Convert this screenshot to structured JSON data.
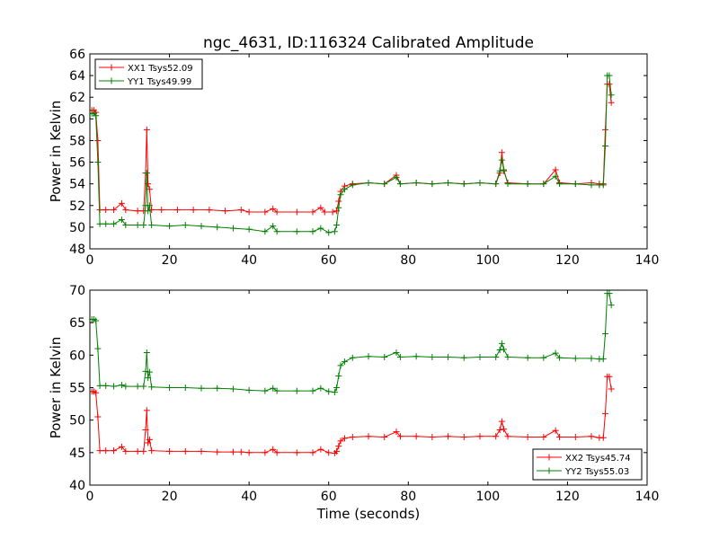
{
  "figure_title": "ngc_4631, ID:116324 Calibrated Amplitude",
  "colors": {
    "red": "#ff0000",
    "green": "#008000",
    "axis": "#000000"
  },
  "chart_data": [
    {
      "type": "line",
      "title": "ngc_4631, ID:116324 Calibrated Amplitude",
      "xlabel": "",
      "ylabel": "Power in Kelvin",
      "xlim": [
        0,
        140
      ],
      "ylim": [
        48,
        66
      ],
      "xticks": [
        0,
        20,
        40,
        60,
        80,
        100,
        120,
        140
      ],
      "yticks": [
        48,
        50,
        52,
        54,
        56,
        58,
        60,
        62,
        64,
        66
      ],
      "grid": false,
      "legend_position": "top-left",
      "series": [
        {
          "name": "XX1 Tsys52.09",
          "color": "#ff0000",
          "marker": "+",
          "points": [
            [
              0.5,
              60.8
            ],
            [
              1,
              60.8
            ],
            [
              1.5,
              60.6
            ],
            [
              2,
              58.0
            ],
            [
              2.5,
              51.6
            ],
            [
              4,
              51.6
            ],
            [
              6,
              51.6
            ],
            [
              8,
              52.2
            ],
            [
              9,
              51.6
            ],
            [
              12,
              51.5
            ],
            [
              13.5,
              51.5
            ],
            [
              14,
              55.0
            ],
            [
              14.3,
              59.0
            ],
            [
              14.6,
              54.0
            ],
            [
              15,
              53.5
            ],
            [
              15.5,
              51.6
            ],
            [
              18,
              51.6
            ],
            [
              22,
              51.6
            ],
            [
              26,
              51.6
            ],
            [
              30,
              51.6
            ],
            [
              34,
              51.5
            ],
            [
              38,
              51.6
            ],
            [
              40,
              51.4
            ],
            [
              44,
              51.4
            ],
            [
              46,
              51.7
            ],
            [
              47,
              51.4
            ],
            [
              52,
              51.4
            ],
            [
              56,
              51.4
            ],
            [
              58,
              51.8
            ],
            [
              59,
              51.4
            ],
            [
              61,
              51.4
            ],
            [
              62,
              51.5
            ],
            [
              62.5,
              52.4
            ],
            [
              63,
              53.3
            ],
            [
              64,
              53.8
            ],
            [
              66,
              54.0
            ],
            [
              70,
              54.1
            ],
            [
              74,
              54.0
            ],
            [
              77,
              54.8
            ],
            [
              78,
              54.0
            ],
            [
              82,
              54.1
            ],
            [
              86,
              54.0
            ],
            [
              90,
              54.1
            ],
            [
              94,
              54.0
            ],
            [
              98,
              54.1
            ],
            [
              102,
              54.0
            ],
            [
              103,
              55.0
            ],
            [
              103.5,
              56.9
            ],
            [
              104,
              55.2
            ],
            [
              105,
              54.1
            ],
            [
              110,
              54.0
            ],
            [
              114,
              54.0
            ],
            [
              117,
              55.3
            ],
            [
              118,
              54.1
            ],
            [
              122,
              54.0
            ],
            [
              126,
              54.1
            ],
            [
              128,
              54.0
            ],
            [
              129,
              54.0
            ],
            [
              129.5,
              59.0
            ],
            [
              130,
              63.2
            ],
            [
              130.5,
              63.2
            ],
            [
              131,
              61.5
            ]
          ]
        },
        {
          "name": "YY1 Tsys49.99",
          "color": "#008000",
          "marker": "+",
          "points": [
            [
              0.5,
              60.5
            ],
            [
              1,
              60.5
            ],
            [
              1.5,
              60.3
            ],
            [
              2,
              56.0
            ],
            [
              2.5,
              50.3
            ],
            [
              4,
              50.3
            ],
            [
              6,
              50.3
            ],
            [
              8,
              50.7
            ],
            [
              9,
              50.2
            ],
            [
              12,
              50.2
            ],
            [
              13.5,
              50.2
            ],
            [
              14,
              52.0
            ],
            [
              14.3,
              55.0
            ],
            [
              14.6,
              51.5
            ],
            [
              15,
              52.0
            ],
            [
              15.5,
              50.2
            ],
            [
              20,
              50.1
            ],
            [
              24,
              50.2
            ],
            [
              28,
              50.1
            ],
            [
              32,
              50.0
            ],
            [
              36,
              49.9
            ],
            [
              40,
              49.8
            ],
            [
              44,
              49.6
            ],
            [
              46,
              50.1
            ],
            [
              47,
              49.6
            ],
            [
              52,
              49.6
            ],
            [
              56,
              49.6
            ],
            [
              58,
              49.9
            ],
            [
              60,
              49.5
            ],
            [
              61.5,
              49.6
            ],
            [
              62,
              50.2
            ],
            [
              62.5,
              51.8
            ],
            [
              63,
              53.0
            ],
            [
              64,
              53.5
            ],
            [
              66,
              53.9
            ],
            [
              70,
              54.1
            ],
            [
              74,
              54.0
            ],
            [
              77,
              54.6
            ],
            [
              78,
              54.0
            ],
            [
              82,
              54.1
            ],
            [
              86,
              54.0
            ],
            [
              90,
              54.1
            ],
            [
              94,
              54.0
            ],
            [
              98,
              54.1
            ],
            [
              102,
              54.0
            ],
            [
              103,
              55.2
            ],
            [
              103.5,
              56.2
            ],
            [
              104,
              55.3
            ],
            [
              105,
              54.0
            ],
            [
              110,
              54.0
            ],
            [
              114,
              54.0
            ],
            [
              117,
              54.7
            ],
            [
              118,
              54.0
            ],
            [
              122,
              54.0
            ],
            [
              126,
              53.9
            ],
            [
              128,
              53.9
            ],
            [
              129,
              53.9
            ],
            [
              129.5,
              57.5
            ],
            [
              130,
              64.0
            ],
            [
              130.5,
              64.0
            ],
            [
              131,
              62.2
            ]
          ]
        }
      ]
    },
    {
      "type": "line",
      "title": "",
      "xlabel": "Time (seconds)",
      "ylabel": "Power in Kelvin",
      "xlim": [
        0,
        140
      ],
      "ylim": [
        40,
        70
      ],
      "xticks": [
        0,
        20,
        40,
        60,
        80,
        100,
        120,
        140
      ],
      "yticks": [
        40,
        45,
        50,
        55,
        60,
        65,
        70
      ],
      "grid": false,
      "legend_position": "bottom-right",
      "series": [
        {
          "name": "XX2 Tsys45.74",
          "color": "#ff0000",
          "marker": "+",
          "points": [
            [
              0.5,
              54.4
            ],
            [
              1,
              54.4
            ],
            [
              1.5,
              54.2
            ],
            [
              2,
              50.5
            ],
            [
              2.5,
              45.3
            ],
            [
              4,
              45.3
            ],
            [
              6,
              45.3
            ],
            [
              8,
              45.9
            ],
            [
              9,
              45.2
            ],
            [
              12,
              45.2
            ],
            [
              13.5,
              45.2
            ],
            [
              14,
              48.5
            ],
            [
              14.3,
              51.5
            ],
            [
              14.6,
              46.5
            ],
            [
              15,
              47.0
            ],
            [
              15.5,
              45.3
            ],
            [
              20,
              45.2
            ],
            [
              24,
              45.2
            ],
            [
              28,
              45.2
            ],
            [
              32,
              45.1
            ],
            [
              36,
              45.1
            ],
            [
              38,
              45.1
            ],
            [
              40,
              45.0
            ],
            [
              44,
              45.0
            ],
            [
              46,
              45.5
            ],
            [
              47,
              45.0
            ],
            [
              52,
              45.0
            ],
            [
              56,
              45.0
            ],
            [
              58,
              45.5
            ],
            [
              60,
              45.0
            ],
            [
              61.5,
              44.9
            ],
            [
              62,
              45.2
            ],
            [
              62.5,
              46.0
            ],
            [
              63,
              46.8
            ],
            [
              64,
              47.2
            ],
            [
              66,
              47.4
            ],
            [
              70,
              47.5
            ],
            [
              74,
              47.4
            ],
            [
              77,
              48.2
            ],
            [
              78,
              47.5
            ],
            [
              82,
              47.5
            ],
            [
              86,
              47.4
            ],
            [
              90,
              47.5
            ],
            [
              94,
              47.4
            ],
            [
              98,
              47.5
            ],
            [
              102,
              47.5
            ],
            [
              103,
              48.5
            ],
            [
              103.5,
              49.8
            ],
            [
              104,
              48.6
            ],
            [
              105,
              47.5
            ],
            [
              110,
              47.4
            ],
            [
              114,
              47.4
            ],
            [
              117,
              48.4
            ],
            [
              118,
              47.4
            ],
            [
              122,
              47.4
            ],
            [
              126,
              47.5
            ],
            [
              128,
              47.3
            ],
            [
              129,
              47.3
            ],
            [
              129.5,
              51.0
            ],
            [
              130,
              56.7
            ],
            [
              130.5,
              56.7
            ],
            [
              131,
              54.8
            ]
          ]
        },
        {
          "name": "YY2 Tsys55.03",
          "color": "#008000",
          "marker": "+",
          "points": [
            [
              0.5,
              65.5
            ],
            [
              1,
              65.5
            ],
            [
              1.5,
              65.3
            ],
            [
              2,
              61.0
            ],
            [
              2.5,
              55.3
            ],
            [
              4,
              55.3
            ],
            [
              6,
              55.2
            ],
            [
              8,
              55.4
            ],
            [
              9,
              55.2
            ],
            [
              12,
              55.2
            ],
            [
              13.5,
              55.2
            ],
            [
              14,
              57.5
            ],
            [
              14.3,
              60.4
            ],
            [
              14.6,
              56.5
            ],
            [
              15,
              57.4
            ],
            [
              15.5,
              55.1
            ],
            [
              20,
              55.0
            ],
            [
              24,
              55.0
            ],
            [
              28,
              54.9
            ],
            [
              32,
              54.9
            ],
            [
              36,
              54.8
            ],
            [
              40,
              54.6
            ],
            [
              44,
              54.5
            ],
            [
              46,
              54.9
            ],
            [
              47,
              54.5
            ],
            [
              52,
              54.5
            ],
            [
              56,
              54.5
            ],
            [
              58,
              54.9
            ],
            [
              60,
              54.4
            ],
            [
              61.5,
              54.3
            ],
            [
              62,
              55.0
            ],
            [
              62.5,
              56.8
            ],
            [
              63,
              58.4
            ],
            [
              64,
              59.0
            ],
            [
              66,
              59.6
            ],
            [
              70,
              59.8
            ],
            [
              74,
              59.7
            ],
            [
              77,
              60.4
            ],
            [
              78,
              59.7
            ],
            [
              82,
              59.8
            ],
            [
              86,
              59.7
            ],
            [
              90,
              59.7
            ],
            [
              94,
              59.6
            ],
            [
              98,
              59.7
            ],
            [
              102,
              59.7
            ],
            [
              103,
              60.8
            ],
            [
              103.5,
              61.8
            ],
            [
              104,
              60.9
            ],
            [
              105,
              59.7
            ],
            [
              110,
              59.6
            ],
            [
              114,
              59.6
            ],
            [
              117,
              60.3
            ],
            [
              118,
              59.6
            ],
            [
              122,
              59.5
            ],
            [
              126,
              59.5
            ],
            [
              128,
              59.4
            ],
            [
              129,
              59.4
            ],
            [
              129.5,
              63.3
            ],
            [
              130,
              69.5
            ],
            [
              130.5,
              69.5
            ],
            [
              131,
              67.7
            ]
          ]
        }
      ]
    }
  ]
}
